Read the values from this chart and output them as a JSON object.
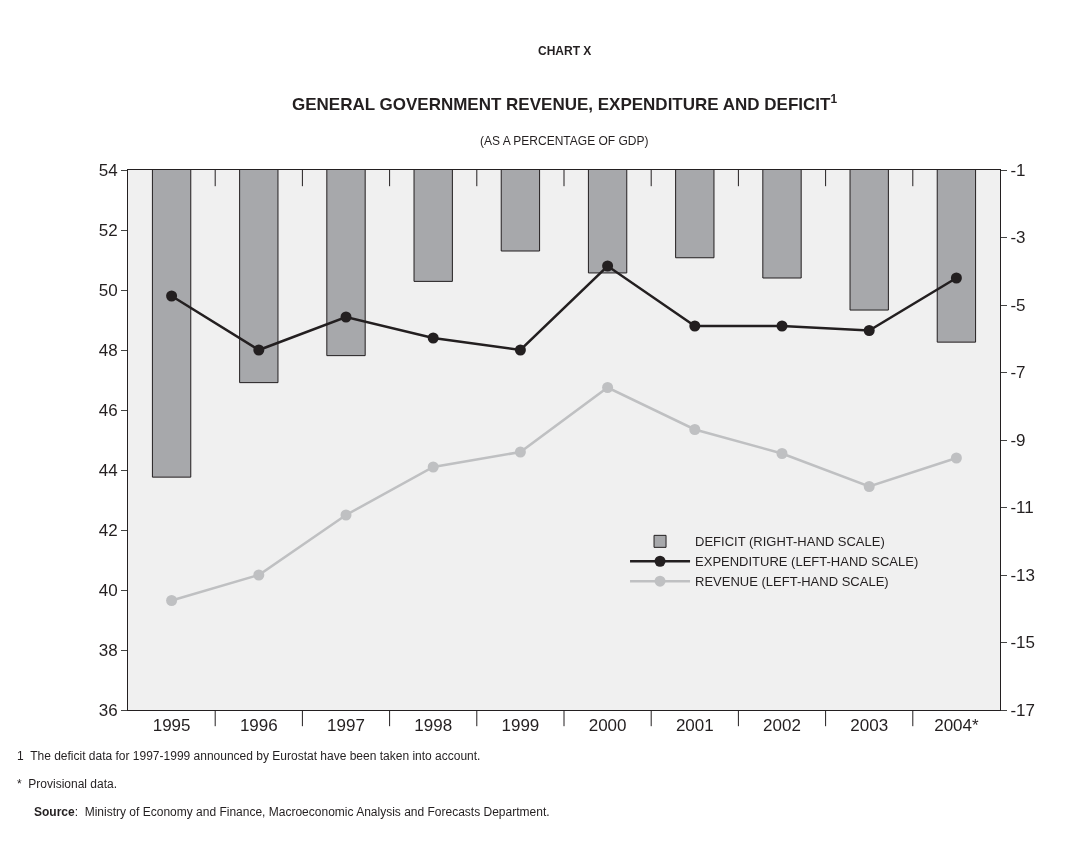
{
  "chart_data": {
    "type": "bar",
    "title": "GENERAL GOVERNMENT REVENUE, EXPENDITURE AND DEFICIT$^{1}$",
    "subtitle": "(AS A PERCENTAGE OF GDP)",
    "categories": [
      "1995",
      "1996",
      "1997",
      "1998",
      "1999",
      "2000",
      "2001",
      "2002",
      "2003",
      "2004*"
    ],
    "series": [
      {
        "name": "DEFICIT (RIGHT-HAND SCALE)",
        "axis": "y2",
        "color": "#a7a8ab",
        "values": [
          -10.1,
          -7.3,
          -6.5,
          -4.3,
          -3.4,
          -4.05,
          -3.6,
          -4.2,
          -5.15,
          -6.1
        ]
      },
      {
        "name": "EXPENDITURE (LEFT-HAND SCALE)",
        "type": "line",
        "color": "#231f20",
        "values": [
          49.8,
          48.0,
          49.1,
          48.4,
          48.0,
          50.8,
          48.8,
          48.8,
          48.65,
          50.4
        ]
      },
      {
        "name": "REVENUE (LEFT-HAND SCALE)",
        "type": "line",
        "color": "#bfc0c2",
        "values": [
          39.65,
          40.5,
          42.5,
          44.1,
          44.6,
          46.75,
          45.35,
          44.55,
          43.45,
          44.4
        ]
      }
    ],
    "ylim": [
      36,
      54
    ],
    "yticks": [
      36,
      38,
      40,
      42,
      44,
      46,
      48,
      50,
      52,
      54
    ],
    "y2lim": [
      -17,
      -1
    ],
    "y2ticks": [
      -17,
      -15,
      -13,
      -11,
      -9,
      -7,
      -5,
      -3,
      -1
    ],
    "marker": "circle",
    "line_style": "solid",
    "grid": false,
    "legend": "bottom right",
    "annotations": [
      "CHART X",
      "1  The deficit data for 1997-1999 announced by Eurostat have been taken into account.",
      "*  Provisional data.",
      "Source:  Ministry of Economy and Finance, Macroeconomic Analysis and Forecasts Department."
    ]
  }
}
